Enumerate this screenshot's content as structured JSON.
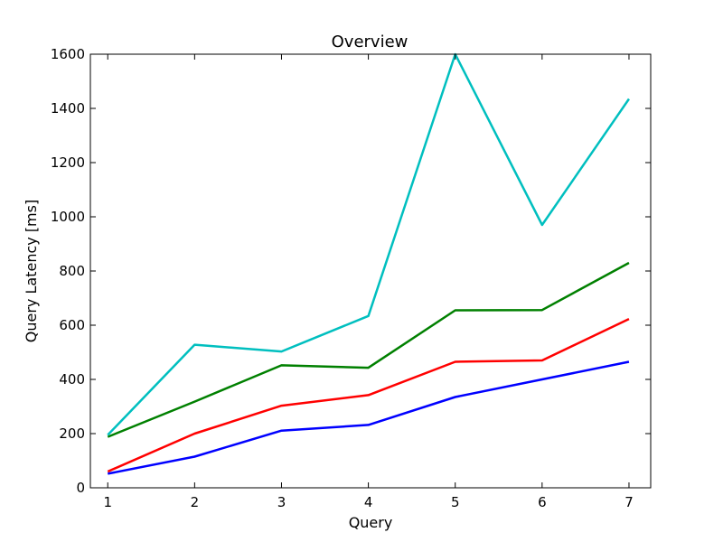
{
  "chart_data": {
    "type": "line",
    "title": "Overview",
    "xlabel": "Query",
    "ylabel": "Query Latency [ms]",
    "x": [
      1,
      2,
      3,
      4,
      5,
      6,
      7
    ],
    "xlim": [
      0.8,
      7.25
    ],
    "ylim": [
      0,
      1600
    ],
    "xticks": [
      "1",
      "2",
      "3",
      "4",
      "5",
      "6",
      "7"
    ],
    "yticks": [
      "0",
      "200",
      "400",
      "600",
      "800",
      "1000",
      "1200",
      "1400",
      "1600"
    ],
    "grid": false,
    "legend": "none",
    "series": [
      {
        "color": "#0000ff",
        "values": [
          52,
          115,
          211,
          232,
          335,
          400,
          465
        ]
      },
      {
        "color": "#ff0000",
        "values": [
          60,
          200,
          303,
          342,
          465,
          470,
          623
        ]
      },
      {
        "color": "#008000",
        "values": [
          188,
          318,
          452,
          443,
          655,
          656,
          830
        ]
      },
      {
        "color": "#00bfbf",
        "values": [
          195,
          528,
          503,
          634,
          1600,
          970,
          1435
        ]
      }
    ]
  }
}
